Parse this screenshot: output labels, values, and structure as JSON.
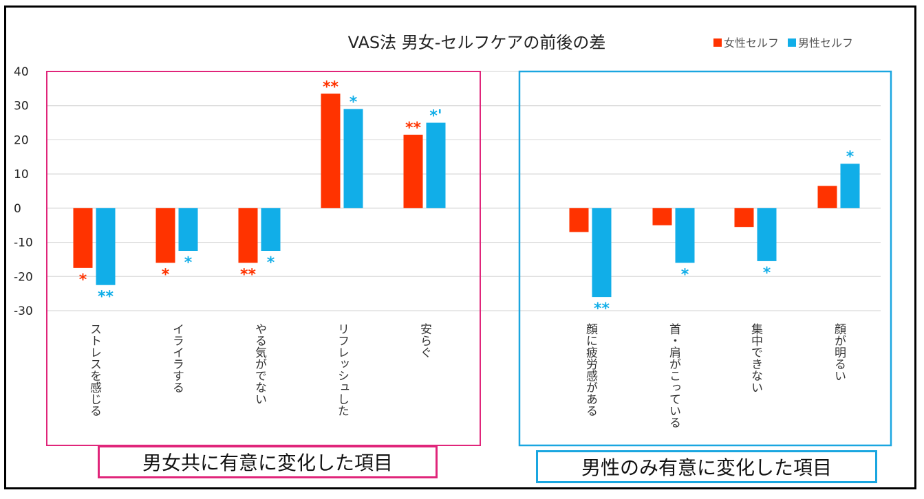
{
  "chart_data": {
    "type": "bar",
    "title": "VAS法 男女-セルフケアの前後の差",
    "categories": [
      "ストレスを感じる",
      "イライラする",
      "やる気がでない",
      "リフレッシュした",
      "安らぐ",
      "顔に疲労感がある",
      "首・肩がこっている",
      "集中できない",
      "顔が明るい"
    ],
    "series": [
      {
        "name": "女性セルフ",
        "color": "#ff3300",
        "values": [
          -17.5,
          -16,
          -16,
          33.5,
          21.5,
          -7,
          -5,
          -5.5,
          6.5
        ],
        "significance": [
          "*",
          "*",
          "**",
          "**",
          "**",
          "",
          "",
          "",
          ""
        ]
      },
      {
        "name": "男性セルフ",
        "color": "#11aee8",
        "values": [
          -22.5,
          -12.5,
          -12.5,
          29,
          25,
          -26,
          -16,
          -15.5,
          13
        ],
        "significance": [
          "**",
          "*",
          "*",
          "*",
          "*'",
          "**",
          "*",
          "*",
          "*"
        ]
      }
    ],
    "y_ticks": [
      40,
      30,
      20,
      10,
      0,
      -10,
      -20,
      -30
    ],
    "ylim": [
      -30,
      40
    ],
    "legend": "top-right",
    "grid": true
  },
  "groups": [
    {
      "label": "男女共に有意に変化した項目",
      "color": "#e0257a"
    },
    {
      "label": "男性のみ有意に変化した項目",
      "color": "#1aa6e0"
    }
  ]
}
